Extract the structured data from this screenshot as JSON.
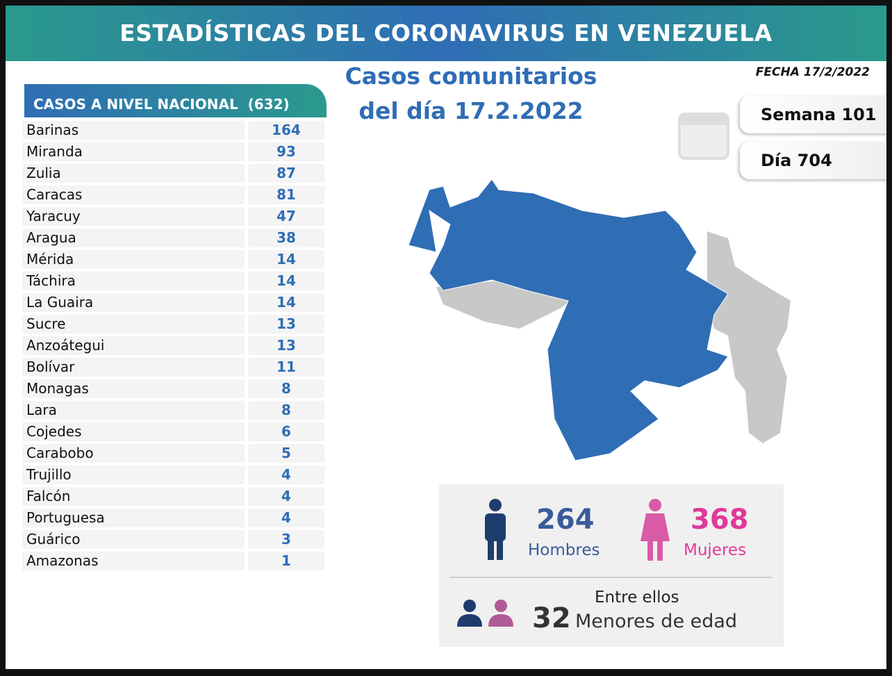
{
  "header": {
    "title": "ESTADÍSTICAS DEL CORONAVIRUS EN VENEZUELA"
  },
  "subtitle": [
    "Casos comunitarios",
    "del día 17.2.2022"
  ],
  "date": "FECHA 17/2/2022",
  "week": "Semana 101",
  "day": "Día 704",
  "table": {
    "title": "CASOS A NIVEL NACIONAL",
    "total": "(632)",
    "rows": [
      [
        "Barinas",
        164
      ],
      [
        "Miranda",
        93
      ],
      [
        "Zulia",
        87
      ],
      [
        "Caracas",
        81
      ],
      [
        "Yaracuy",
        47
      ],
      [
        "Aragua",
        38
      ],
      [
        "Mérida",
        14
      ],
      [
        "Táchira",
        14
      ],
      [
        "La Guaira",
        14
      ],
      [
        "Sucre",
        13
      ],
      [
        "Anzoátegui",
        13
      ],
      [
        "Bolívar",
        11
      ],
      [
        "Monagas",
        8
      ],
      [
        "Lara",
        8
      ],
      [
        "Cojedes",
        6
      ],
      [
        "Carabobo",
        5
      ],
      [
        "Trujillo",
        4
      ],
      [
        "Falcón",
        4
      ],
      [
        "Portuguesa",
        4
      ],
      [
        "Guárico",
        3
      ],
      [
        "Amazonas",
        1
      ]
    ]
  },
  "gender": {
    "men": {
      "value": 264,
      "label": "Hombres"
    },
    "women": {
      "value": 368,
      "label": "Mujeres"
    }
  },
  "minors": {
    "intro": "Entre ellos",
    "value": 32,
    "label": "Menores de edad"
  }
}
